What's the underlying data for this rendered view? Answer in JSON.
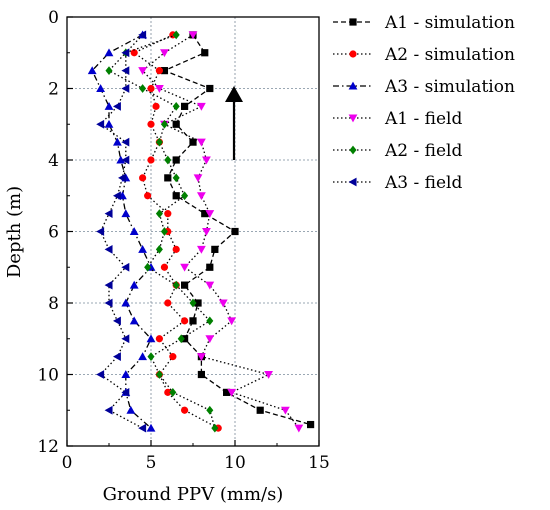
{
  "chart_data": {
    "type": "line",
    "title": "",
    "xlabel": "Ground PPV (mm/s)",
    "ylabel": "Depth (m)",
    "xlim": [
      0,
      15
    ],
    "ylim": [
      0,
      12
    ],
    "y_inverted": true,
    "x_ticks": [
      "0",
      "5",
      "10",
      "15"
    ],
    "y_ticks": [
      "0",
      "2",
      "4",
      "6",
      "8",
      "10",
      "12"
    ],
    "grid": "dotted vertical and horizontal",
    "legend_position": "right, outside plot",
    "annotation": "upward arrow",
    "series": [
      {
        "name": "A1 - simulation",
        "color": "#000000",
        "marker": "square",
        "line_style": "dashed",
        "points": [
          [
            7.5,
            0.5
          ],
          [
            8.2,
            1.0
          ],
          [
            5.8,
            1.5
          ],
          [
            8.5,
            2.0
          ],
          [
            7.0,
            2.5
          ],
          [
            6.5,
            3.0
          ],
          [
            7.5,
            3.5
          ],
          [
            6.5,
            4.0
          ],
          [
            6.0,
            4.5
          ],
          [
            6.5,
            5.0
          ],
          [
            8.2,
            5.5
          ],
          [
            10.0,
            6.0
          ],
          [
            8.8,
            6.5
          ],
          [
            8.5,
            7.0
          ],
          [
            7.0,
            7.5
          ],
          [
            7.8,
            8.0
          ],
          [
            7.5,
            8.5
          ],
          [
            7.0,
            9.0
          ],
          [
            8.0,
            9.5
          ],
          [
            8.0,
            10.0
          ],
          [
            9.5,
            10.5
          ],
          [
            11.5,
            11.0
          ],
          [
            14.5,
            11.4
          ]
        ]
      },
      {
        "name": "A2 - simulation",
        "color": "#ff0000",
        "marker": "circle",
        "line_style": "dotted",
        "points": [
          [
            6.3,
            0.5
          ],
          [
            4.0,
            1.0
          ],
          [
            5.5,
            1.5
          ],
          [
            5.0,
            2.0
          ],
          [
            5.3,
            2.5
          ],
          [
            5.0,
            3.0
          ],
          [
            5.5,
            3.5
          ],
          [
            5.0,
            4.0
          ],
          [
            4.5,
            4.5
          ],
          [
            4.8,
            5.0
          ],
          [
            6.0,
            5.5
          ],
          [
            6.0,
            6.0
          ],
          [
            6.5,
            6.5
          ],
          [
            5.8,
            7.0
          ],
          [
            6.5,
            7.5
          ],
          [
            6.0,
            8.0
          ],
          [
            7.0,
            8.5
          ],
          [
            5.5,
            9.0
          ],
          [
            6.3,
            9.5
          ],
          [
            5.5,
            10.0
          ],
          [
            6.0,
            10.5
          ],
          [
            7.0,
            11.0
          ],
          [
            9.0,
            11.5
          ]
        ]
      },
      {
        "name": "A3 - simulation",
        "color": "#0000cc",
        "marker": "triangle-up",
        "line_style": "dash-dot",
        "points": [
          [
            4.5,
            0.5
          ],
          [
            2.5,
            1.0
          ],
          [
            1.5,
            1.5
          ],
          [
            2.0,
            2.0
          ],
          [
            2.5,
            2.5
          ],
          [
            2.5,
            3.0
          ],
          [
            3.0,
            3.5
          ],
          [
            3.2,
            4.0
          ],
          [
            3.5,
            4.5
          ],
          [
            3.3,
            5.0
          ],
          [
            3.5,
            5.5
          ],
          [
            4.0,
            6.0
          ],
          [
            4.5,
            6.5
          ],
          [
            5.0,
            7.0
          ],
          [
            4.0,
            7.5
          ],
          [
            3.5,
            8.0
          ],
          [
            4.0,
            8.5
          ],
          [
            5.0,
            9.0
          ],
          [
            4.5,
            9.5
          ],
          [
            3.5,
            10.0
          ],
          [
            3.5,
            10.5
          ],
          [
            3.8,
            11.0
          ],
          [
            5.0,
            11.5
          ]
        ]
      },
      {
        "name": "A1 - field",
        "color": "#ee00ee",
        "marker": "triangle-down",
        "line_style": "dotted",
        "points": [
          [
            7.5,
            0.5
          ],
          [
            5.8,
            1.0
          ],
          [
            4.5,
            1.5
          ],
          [
            5.5,
            2.0
          ],
          [
            8.0,
            2.5
          ],
          [
            5.8,
            3.0
          ],
          [
            8.0,
            3.5
          ],
          [
            8.3,
            4.0
          ],
          [
            7.8,
            4.5
          ],
          [
            8.0,
            5.0
          ],
          [
            8.5,
            5.5
          ],
          [
            8.3,
            6.0
          ],
          [
            8.0,
            6.5
          ],
          [
            7.0,
            7.0
          ],
          [
            8.5,
            7.5
          ],
          [
            9.3,
            8.0
          ],
          [
            9.8,
            8.5
          ],
          [
            8.5,
            9.0
          ],
          [
            8.0,
            9.5
          ],
          [
            12.0,
            10.0
          ],
          [
            9.8,
            10.5
          ],
          [
            13.0,
            11.0
          ],
          [
            13.8,
            11.5
          ]
        ]
      },
      {
        "name": "A2 - field",
        "color": "#008000",
        "marker": "diamond",
        "line_style": "dotted",
        "points": [
          [
            6.5,
            0.5
          ],
          [
            3.5,
            1.0
          ],
          [
            2.5,
            1.5
          ],
          [
            4.5,
            2.0
          ],
          [
            6.5,
            2.5
          ],
          [
            5.8,
            3.0
          ],
          [
            5.5,
            3.5
          ],
          [
            6.0,
            4.0
          ],
          [
            6.5,
            4.5
          ],
          [
            7.0,
            5.0
          ],
          [
            5.5,
            5.5
          ],
          [
            5.8,
            6.0
          ],
          [
            5.5,
            6.5
          ],
          [
            4.8,
            7.0
          ],
          [
            6.5,
            7.5
          ],
          [
            7.5,
            8.0
          ],
          [
            8.5,
            8.5
          ],
          [
            6.8,
            9.0
          ],
          [
            5.0,
            9.5
          ],
          [
            5.5,
            10.0
          ],
          [
            6.3,
            10.5
          ],
          [
            8.5,
            11.0
          ],
          [
            8.8,
            11.5
          ]
        ]
      },
      {
        "name": "A3 - field",
        "color": "#000099",
        "marker": "triangle-left",
        "line_style": "dotted",
        "points": [
          [
            4.5,
            0.5
          ],
          [
            3.5,
            1.0
          ],
          [
            3.5,
            1.5
          ],
          [
            3.5,
            2.0
          ],
          [
            3.0,
            2.5
          ],
          [
            2.0,
            3.0
          ],
          [
            3.5,
            3.5
          ],
          [
            3.5,
            4.0
          ],
          [
            3.3,
            4.5
          ],
          [
            3.0,
            5.0
          ],
          [
            2.5,
            5.5
          ],
          [
            2.0,
            6.0
          ],
          [
            2.5,
            6.5
          ],
          [
            3.5,
            7.0
          ],
          [
            2.5,
            7.5
          ],
          [
            2.5,
            8.0
          ],
          [
            3.0,
            8.5
          ],
          [
            3.5,
            9.0
          ],
          [
            3.0,
            9.5
          ],
          [
            2.0,
            10.0
          ],
          [
            3.5,
            10.5
          ],
          [
            2.5,
            11.0
          ],
          [
            4.5,
            11.5
          ]
        ]
      }
    ]
  }
}
